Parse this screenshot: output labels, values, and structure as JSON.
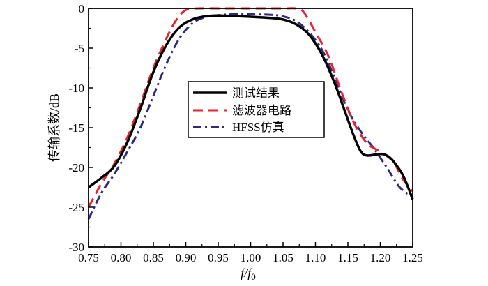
{
  "chart_data": {
    "type": "line",
    "xlabel_main": "f/f",
    "xlabel_sub": "0",
    "ylabel": "传输系数/dB",
    "xlim": [
      0.75,
      1.25
    ],
    "ylim": [
      -30,
      0
    ],
    "x_ticks": [
      "0.75",
      "0.80",
      "0.85",
      "0.90",
      "0.95",
      "1.00",
      "1.05",
      "1.10",
      "1.15",
      "1.20",
      "1.25"
    ],
    "y_ticks": [
      "0",
      "-5",
      "-10",
      "-15",
      "-20",
      "-25",
      "-30"
    ],
    "grid": false,
    "legend_position": "center",
    "series": [
      {
        "name": "测试结果",
        "color": "#000000",
        "style": "solid",
        "points": [
          [
            0.75,
            -22.5
          ],
          [
            0.77,
            -21.3
          ],
          [
            0.79,
            -19.8
          ],
          [
            0.81,
            -16.8
          ],
          [
            0.83,
            -12.6
          ],
          [
            0.85,
            -8.0
          ],
          [
            0.87,
            -4.6
          ],
          [
            0.89,
            -2.4
          ],
          [
            0.91,
            -1.4
          ],
          [
            0.93,
            -1.0
          ],
          [
            0.95,
            -0.9
          ],
          [
            0.97,
            -0.95
          ],
          [
            1.0,
            -1.05
          ],
          [
            1.03,
            -1.2
          ],
          [
            1.05,
            -1.4
          ],
          [
            1.07,
            -2.0
          ],
          [
            1.09,
            -3.3
          ],
          [
            1.11,
            -5.8
          ],
          [
            1.13,
            -9.5
          ],
          [
            1.15,
            -14.0
          ],
          [
            1.16,
            -16.2
          ],
          [
            1.17,
            -18.0
          ],
          [
            1.18,
            -18.5
          ],
          [
            1.2,
            -18.3
          ],
          [
            1.21,
            -18.5
          ],
          [
            1.22,
            -19.2
          ],
          [
            1.235,
            -21.0
          ],
          [
            1.25,
            -24.0
          ]
        ]
      },
      {
        "name": "滤波器电路",
        "color": "#e8232e",
        "style": "dashed",
        "points": [
          [
            0.75,
            -25.0
          ],
          [
            0.77,
            -22.0
          ],
          [
            0.79,
            -19.5
          ],
          [
            0.81,
            -16.2
          ],
          [
            0.83,
            -12.0
          ],
          [
            0.85,
            -7.5
          ],
          [
            0.87,
            -3.8
          ],
          [
            0.885,
            -1.5
          ],
          [
            0.9,
            -0.2
          ],
          [
            0.92,
            0.0
          ],
          [
            0.95,
            0.0
          ],
          [
            1.0,
            0.0
          ],
          [
            1.05,
            0.0
          ],
          [
            1.07,
            0.0
          ],
          [
            1.08,
            -0.3
          ],
          [
            1.09,
            -1.5
          ],
          [
            1.1,
            -3.0
          ],
          [
            1.12,
            -6.0
          ],
          [
            1.14,
            -10.5
          ],
          [
            1.16,
            -14.5
          ],
          [
            1.18,
            -17.0
          ],
          [
            1.2,
            -18.0
          ],
          [
            1.22,
            -19.3
          ],
          [
            1.235,
            -21.5
          ],
          [
            1.25,
            -23.0
          ]
        ]
      },
      {
        "name": "HFSS仿真",
        "color": "#2e2a7f",
        "style": "dashdot",
        "points": [
          [
            0.75,
            -26.5
          ],
          [
            0.77,
            -23.2
          ],
          [
            0.79,
            -20.8
          ],
          [
            0.81,
            -18.0
          ],
          [
            0.83,
            -15.0
          ],
          [
            0.85,
            -11.0
          ],
          [
            0.87,
            -7.0
          ],
          [
            0.89,
            -3.8
          ],
          [
            0.91,
            -1.9
          ],
          [
            0.93,
            -1.1
          ],
          [
            0.95,
            -0.85
          ],
          [
            0.97,
            -0.75
          ],
          [
            1.0,
            -0.75
          ],
          [
            1.03,
            -0.8
          ],
          [
            1.05,
            -1.0
          ],
          [
            1.07,
            -1.6
          ],
          [
            1.09,
            -3.0
          ],
          [
            1.11,
            -5.2
          ],
          [
            1.13,
            -8.8
          ],
          [
            1.15,
            -12.8
          ],
          [
            1.17,
            -15.5
          ],
          [
            1.19,
            -17.6
          ],
          [
            1.21,
            -20.0
          ],
          [
            1.23,
            -22.5
          ],
          [
            1.25,
            -23.7
          ]
        ]
      }
    ]
  }
}
